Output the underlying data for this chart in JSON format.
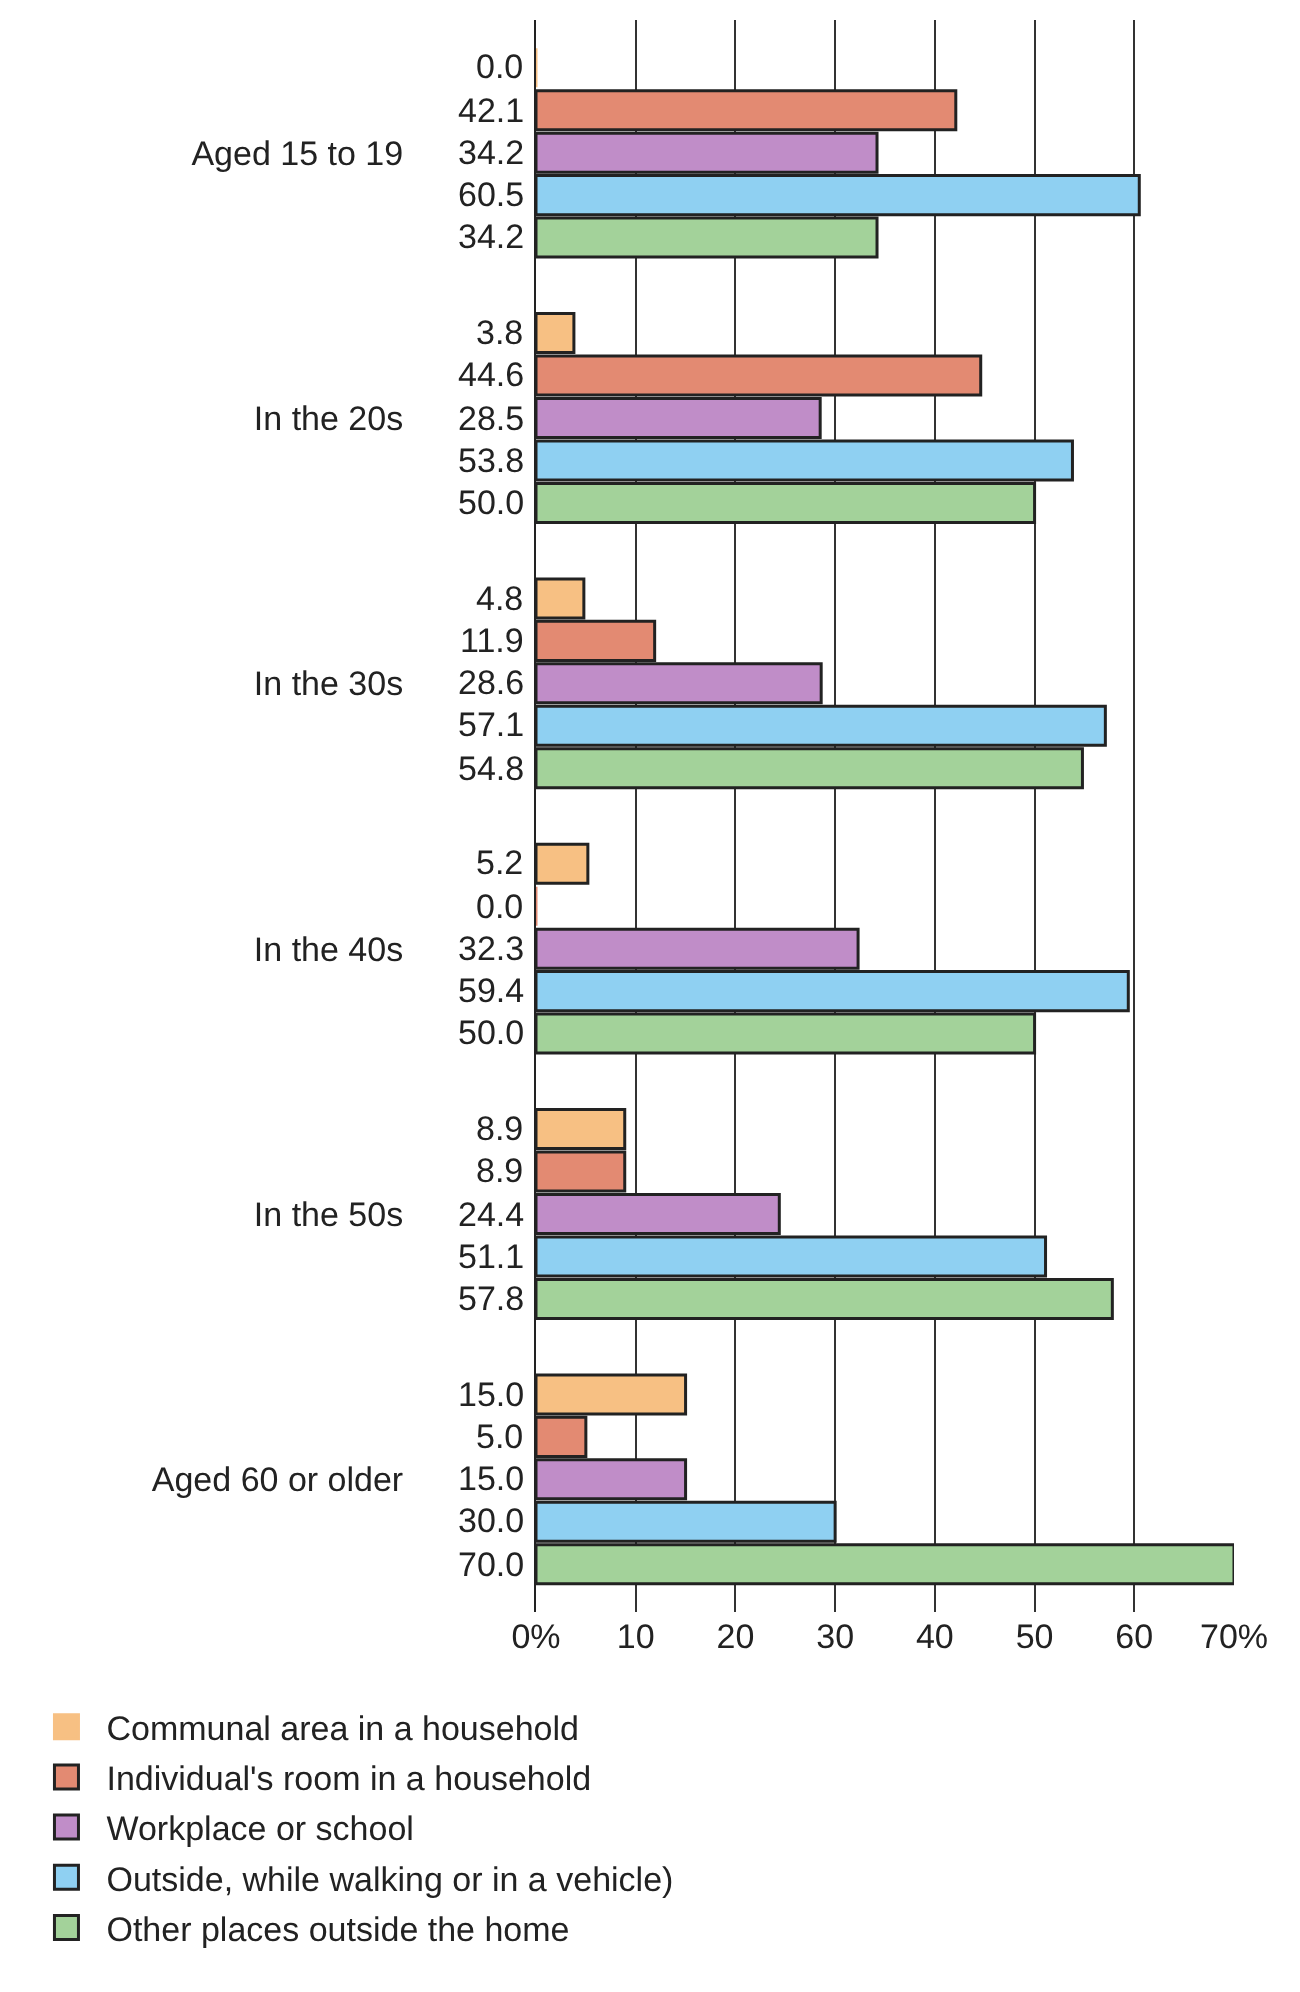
{
  "chart_data": {
    "type": "bar",
    "orientation": "horizontal",
    "categories": [
      "Aged 15 to 19",
      "In the 20s",
      "In the 30s",
      "In the 40s",
      "In the 50s",
      "Aged 60 or older"
    ],
    "series": [
      {
        "name": "Communal area in a household",
        "color": "#f7c083",
        "values": [
          0.0,
          3.8,
          4.8,
          5.2,
          8.9,
          15.0
        ],
        "value_labels": [
          "0.0",
          "3.8",
          "4.8",
          "5.2",
          "8.9",
          "15.0"
        ]
      },
      {
        "name": "Individual's room in a household",
        "color": "#e38a72",
        "values": [
          42.1,
          44.6,
          11.9,
          0.0,
          8.9,
          5.0
        ],
        "value_labels": [
          "42.1",
          "44.6",
          "11.9",
          "0.0",
          "8.9",
          "5.0"
        ]
      },
      {
        "name": "Workplace or school",
        "color": "#c08dc8",
        "values": [
          34.2,
          28.5,
          28.6,
          32.3,
          24.4,
          15.0
        ],
        "value_labels": [
          "34.2",
          "28.5",
          "28.6",
          "32.3",
          "24.4",
          "15.0"
        ]
      },
      {
        "name": "Outside, while walking or in a vehicle)",
        "color": "#8fd0f2",
        "values": [
          60.5,
          53.8,
          57.1,
          59.4,
          51.1,
          30.0
        ],
        "value_labels": [
          "60.5",
          "53.8",
          "57.1",
          "59.4",
          "51.1",
          "30.0"
        ]
      },
      {
        "name": "Other places outside the home",
        "color": "#a3d29a",
        "values": [
          34.2,
          50.0,
          54.8,
          50.0,
          57.8,
          70.0
        ],
        "value_labels": [
          "34.2",
          "50.0",
          "54.8",
          "50.0",
          "57.8",
          "70.0"
        ]
      }
    ],
    "xlim": [
      0,
      70
    ],
    "xticks": [
      {
        "value": 0,
        "label": "0%"
      },
      10,
      20,
      30,
      40,
      50,
      60,
      {
        "value": 70,
        "label": "70%"
      }
    ],
    "grid": "x",
    "legend": "bottom"
  }
}
